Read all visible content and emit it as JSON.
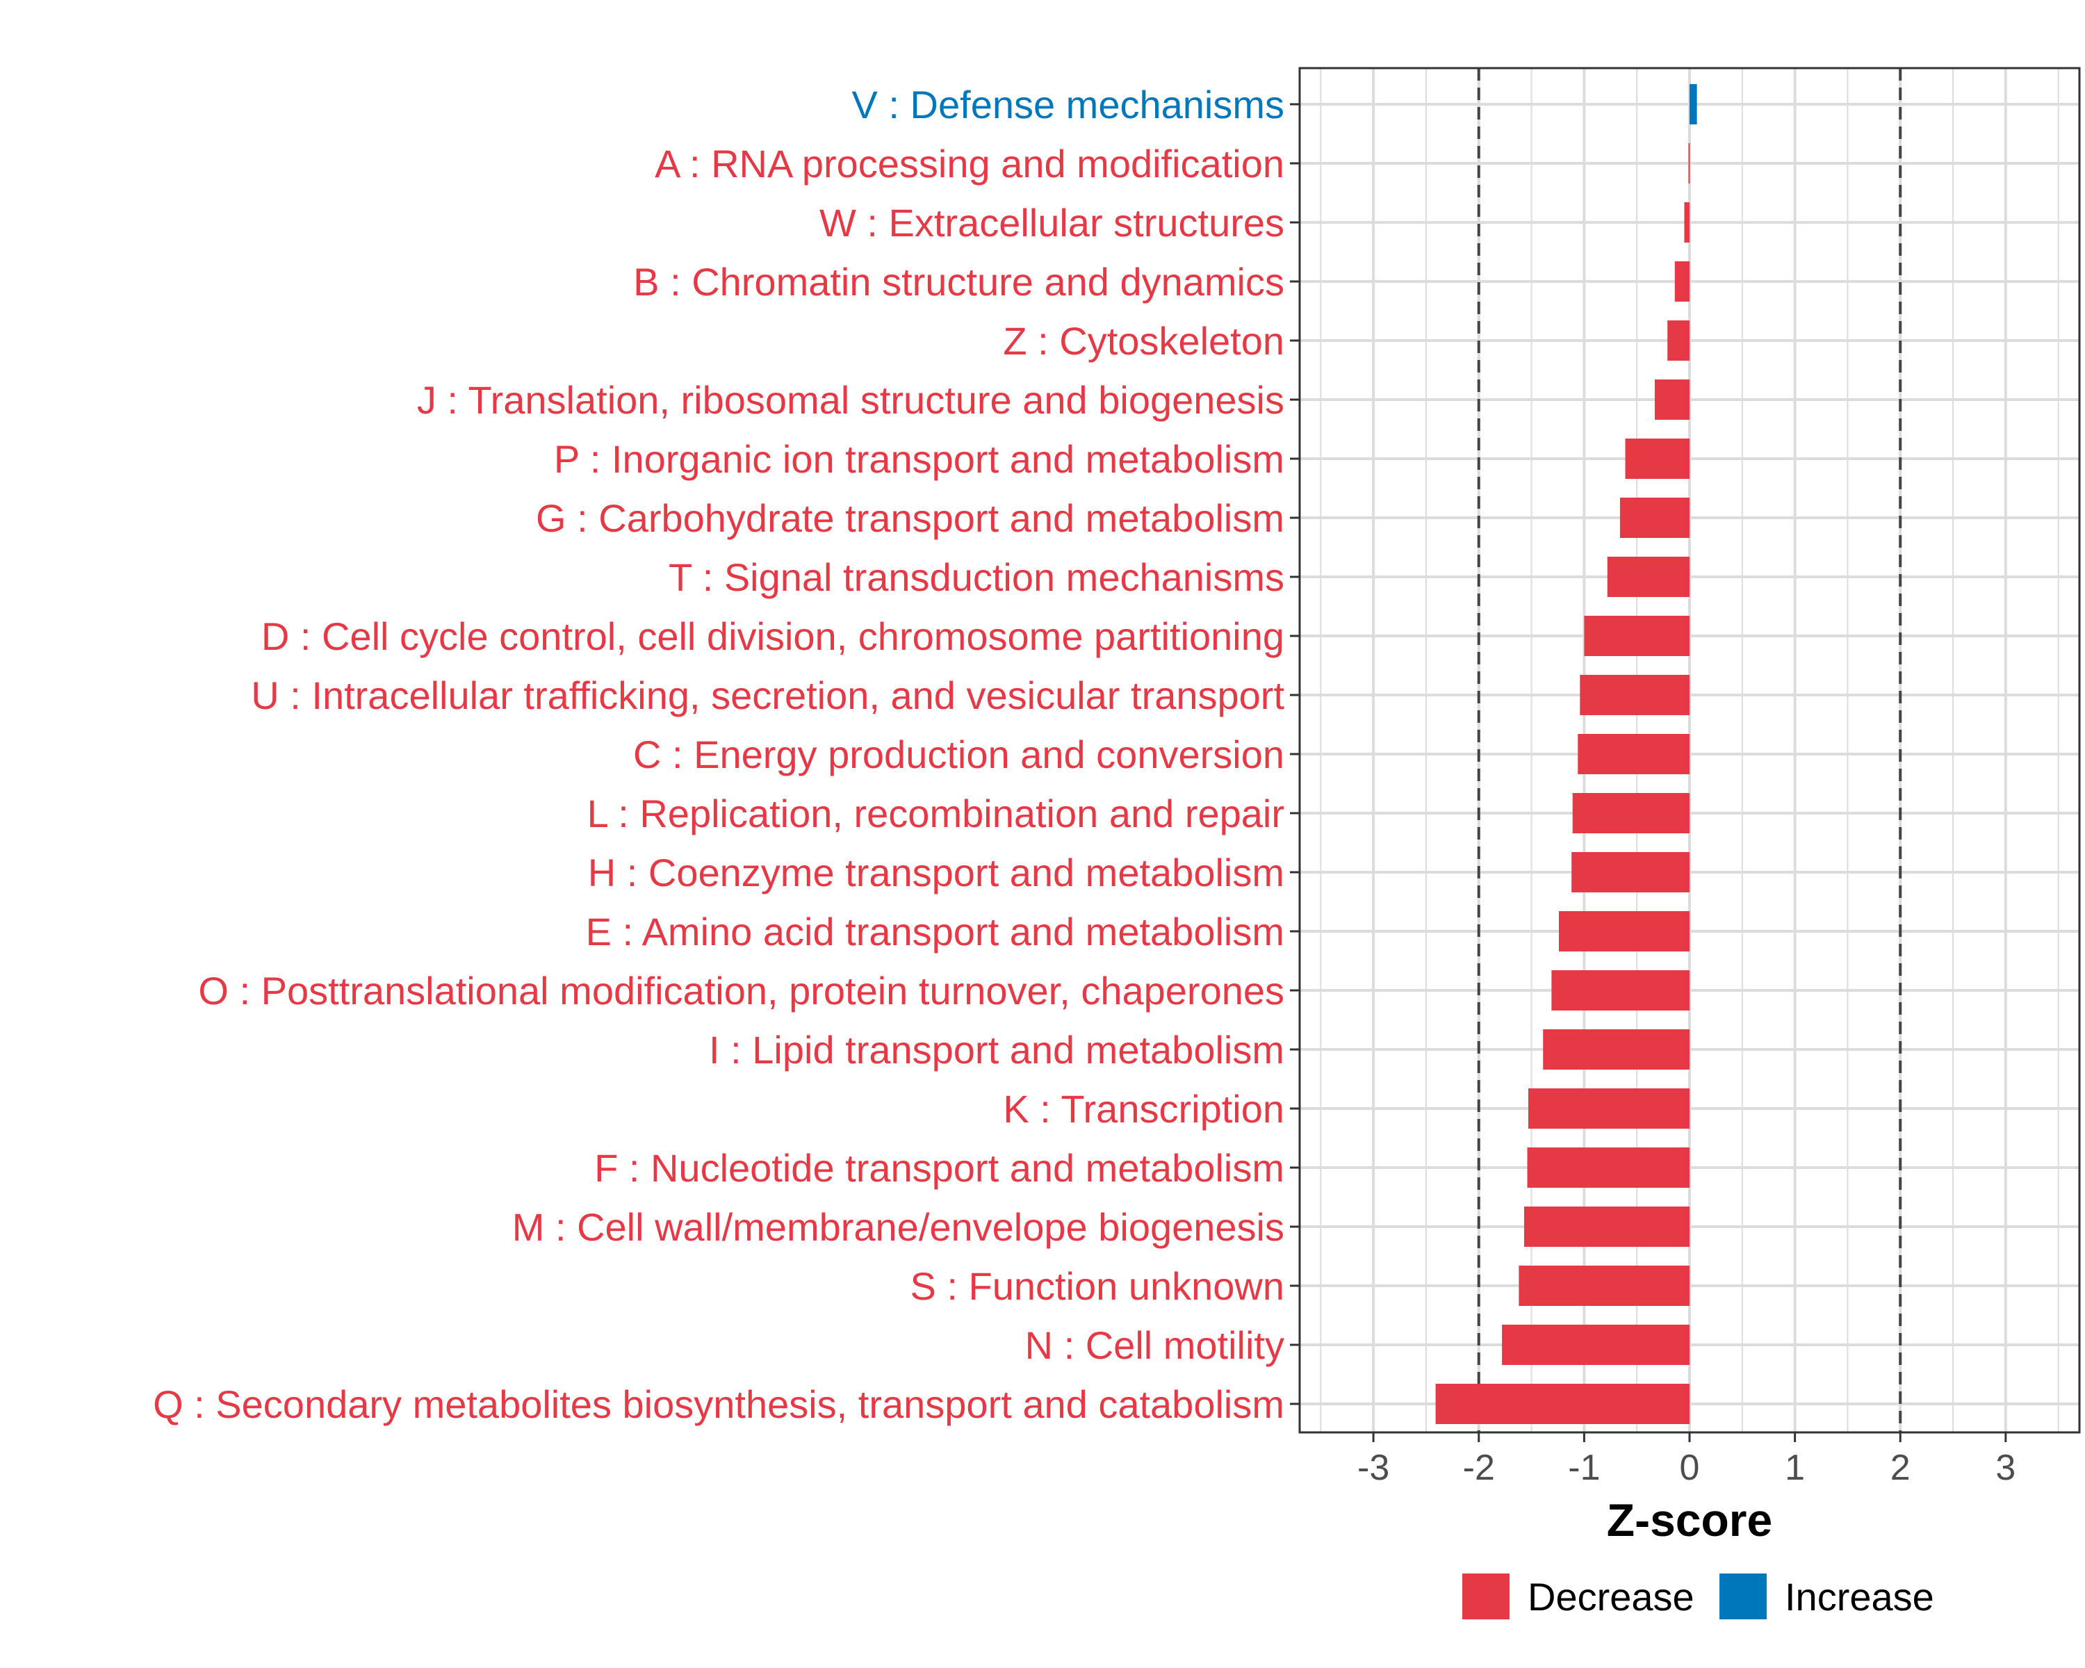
{
  "chart_data": {
    "type": "bar",
    "orientation": "horizontal",
    "xlabel": "Z-score",
    "xlim": [
      -3.7,
      3.7
    ],
    "xticks": [
      -3,
      -2,
      -1,
      0,
      1,
      2,
      3
    ],
    "xtick_labels": [
      "-3",
      "-2",
      "-1",
      "0",
      "1",
      "2",
      "3"
    ],
    "reference_lines": [
      -2,
      2
    ],
    "grid": true,
    "colors": {
      "Decrease": "#e63946",
      "Increase": "#0077bb"
    },
    "legend": {
      "position": "bottom",
      "entries": [
        "Decrease",
        "Increase"
      ]
    },
    "categories": [
      "V : Defense mechanisms",
      "A : RNA processing and modification",
      "W : Extracellular structures",
      "B : Chromatin structure and dynamics",
      "Z : Cytoskeleton",
      "J : Translation, ribosomal structure and biogenesis",
      "P : Inorganic ion transport and metabolism",
      "G : Carbohydrate transport and metabolism",
      "T : Signal transduction mechanisms",
      "D : Cell cycle control, cell division, chromosome partitioning",
      "U : Intracellular trafficking, secretion, and vesicular transport",
      "C : Energy production and conversion",
      "L : Replication, recombination and repair",
      "H : Coenzyme transport and metabolism",
      "E : Amino acid transport and metabolism",
      "O : Posttranslational modification, protein turnover, chaperones",
      "I : Lipid transport and metabolism",
      "K : Transcription",
      "F : Nucleotide transport and metabolism",
      "M : Cell wall/membrane/envelope biogenesis",
      "S : Function unknown",
      "N : Cell motility",
      "Q : Secondary metabolites biosynthesis, transport and catabolism"
    ],
    "values": [
      0.07,
      -0.01,
      -0.05,
      -0.14,
      -0.21,
      -0.33,
      -0.61,
      -0.66,
      -0.78,
      -1.0,
      -1.04,
      -1.06,
      -1.11,
      -1.12,
      -1.24,
      -1.31,
      -1.39,
      -1.53,
      -1.54,
      -1.57,
      -1.62,
      -1.78,
      -2.41
    ],
    "directions": [
      "Increase",
      "Decrease",
      "Decrease",
      "Decrease",
      "Decrease",
      "Decrease",
      "Decrease",
      "Decrease",
      "Decrease",
      "Decrease",
      "Decrease",
      "Decrease",
      "Decrease",
      "Decrease",
      "Decrease",
      "Decrease",
      "Decrease",
      "Decrease",
      "Decrease",
      "Decrease",
      "Decrease",
      "Decrease",
      "Decrease"
    ]
  }
}
